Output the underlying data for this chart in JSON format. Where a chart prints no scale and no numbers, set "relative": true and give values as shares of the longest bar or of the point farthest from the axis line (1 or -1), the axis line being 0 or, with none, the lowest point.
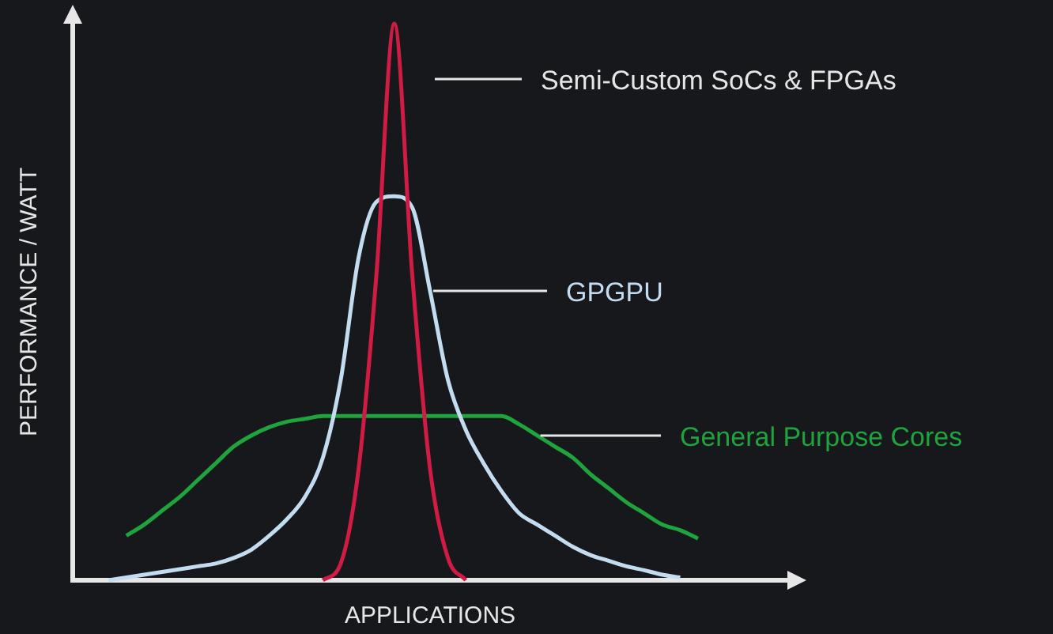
{
  "chart_data": {
    "type": "line",
    "relative": true,
    "xlabel": "APPLICATIONS",
    "ylabel": "PERFORMANCE / WATT",
    "legend": false,
    "grid": false,
    "marker": "none",
    "line_style": "solid",
    "categories": [
      null,
      null,
      null,
      null,
      null,
      null,
      null,
      null,
      null,
      null,
      null,
      null,
      null,
      null,
      null,
      null,
      null,
      null,
      null,
      null,
      null,
      null,
      null,
      null,
      null,
      null,
      null,
      null,
      null,
      null,
      null,
      null,
      null,
      null,
      null,
      null,
      null,
      null,
      null,
      null,
      null
    ],
    "series": [
      {
        "name": "Semi-Custom SoCs & FPGAs",
        "color": "#d01c44",
        "values": [
          null,
          null,
          null,
          null,
          null,
          null,
          null,
          null,
          null,
          null,
          null,
          null,
          null,
          null,
          0,
          0.03,
          0.2,
          0.55,
          1,
          0.55,
          0.2,
          0.04,
          0,
          null,
          null,
          null,
          null,
          null,
          null,
          null,
          null,
          null,
          null,
          null,
          null,
          null,
          null,
          null,
          null,
          null,
          null
        ]
      },
      {
        "name": "GPGPU",
        "color": "#c4dcef",
        "values": [
          null,
          null,
          0,
          0.005,
          0.01,
          0.015,
          0.02,
          0.025,
          0.03,
          0.04,
          0.055,
          0.08,
          0.11,
          0.15,
          0.22,
          0.36,
          0.58,
          0.68,
          0.69,
          0.67,
          0.52,
          0.36,
          0.27,
          0.21,
          0.16,
          0.12,
          0.1,
          0.08,
          0.06,
          0.045,
          0.035,
          0.025,
          0.018,
          0.01,
          0.005,
          null,
          null,
          null,
          null,
          null,
          null
        ]
      },
      {
        "name": "General Purpose Cores",
        "color": "#1fa33c",
        "values": [
          null,
          null,
          null,
          0.08,
          0.1,
          0.125,
          0.15,
          0.18,
          0.21,
          0.24,
          0.26,
          0.275,
          0.285,
          0.29,
          0.295,
          0.295,
          0.295,
          0.295,
          0.295,
          0.295,
          0.295,
          0.295,
          0.295,
          0.295,
          0.295,
          0.28,
          0.26,
          0.24,
          0.22,
          0.19,
          0.165,
          0.14,
          0.12,
          0.1,
          0.09,
          0.075,
          null,
          null,
          null,
          null,
          null
        ]
      }
    ]
  }
}
